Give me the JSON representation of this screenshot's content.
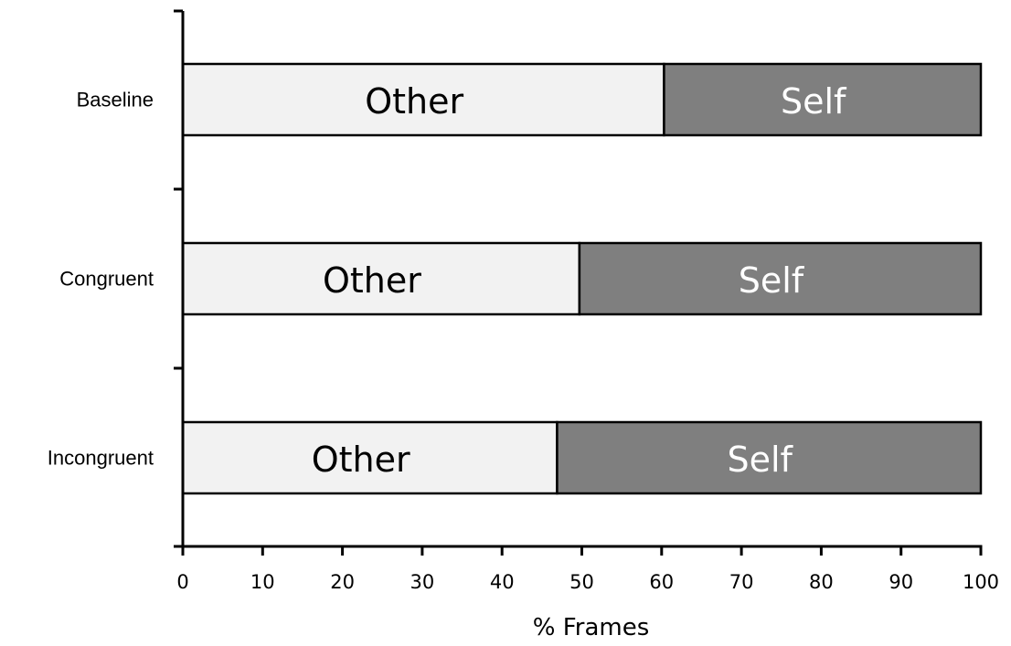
{
  "chart_data": {
    "type": "bar",
    "orientation": "horizontal",
    "stacked": true,
    "categories": [
      "Baseline",
      "Congruent",
      "Incongruent"
    ],
    "series": [
      {
        "name": "Other",
        "values": [
          60.3,
          49.7,
          46.9
        ],
        "color": "#f2f2f2",
        "label_color": "#000000"
      },
      {
        "name": "Self",
        "values": [
          39.7,
          50.3,
          53.1
        ],
        "color": "#7f7f7f",
        "label_color": "#ffffff"
      }
    ],
    "xlabel": "% Frames",
    "ylabel": "",
    "xlim": [
      0,
      100
    ],
    "xticks": [
      0,
      10,
      20,
      30,
      40,
      50,
      60,
      70,
      80,
      90,
      100
    ],
    "grid": false,
    "legend": "none"
  }
}
